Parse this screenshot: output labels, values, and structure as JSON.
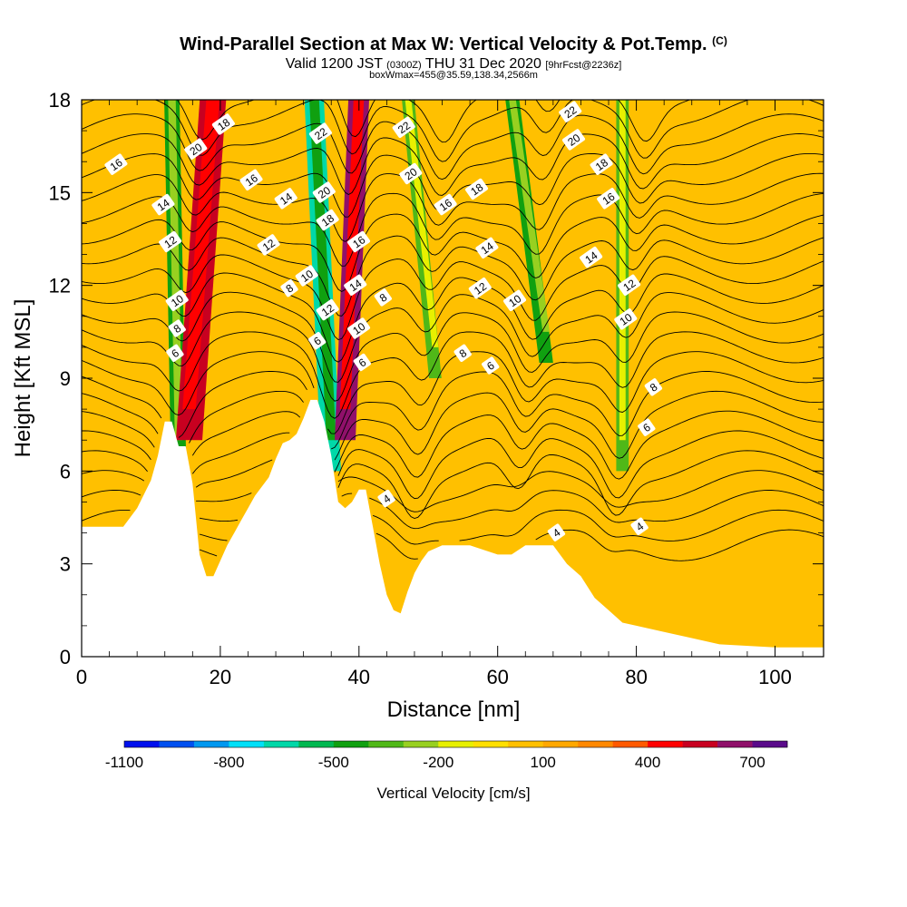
{
  "header": {
    "title": "Wind-Parallel Section at Max W: Vertical Velocity & Pot.Temp.",
    "title_mark": "(C)",
    "valid_label": "Valid 1200 JST",
    "valid_utc": "(0300Z)",
    "valid_date": "THU 31 Dec 2020",
    "forecast_info": "[9hrFcst@2236z]",
    "box_info": "boxWmax=455@35.59,138.34,2566m"
  },
  "chart_data": {
    "type": "heatmap",
    "title": "Wind-Parallel Section at Max W: Vertical Velocity & Pot.Temp.",
    "xlabel": "Distance [nm]",
    "ylabel": "Height [Kft MSL]",
    "xlim": [
      0,
      107
    ],
    "ylim": [
      0,
      18
    ],
    "x_ticks": [
      0,
      20,
      40,
      60,
      80,
      100
    ],
    "y_ticks": [
      0,
      3,
      6,
      9,
      12,
      15,
      18
    ],
    "colorbar": {
      "label": "Vertical Velocity [cm/s]",
      "tick_labels": [
        "-1100",
        "-800",
        "-500",
        "-200",
        "100",
        "400",
        "700"
      ],
      "tick_values": [
        -1100,
        -800,
        -500,
        -200,
        100,
        400,
        700
      ],
      "min": -1100,
      "max": 800,
      "colors": [
        "#0010ee",
        "#0050f0",
        "#0098f0",
        "#00e0f8",
        "#00d8a8",
        "#00b850",
        "#10a010",
        "#50b818",
        "#98d020",
        "#e8f000",
        "#ffe000",
        "#ffc000",
        "#ffa800",
        "#ff8800",
        "#ff5a00",
        "#ff0000",
        "#c80020",
        "#90106a",
        "#5a0a8a"
      ]
    },
    "terrain_kft": [
      [
        0,
        4.2
      ],
      [
        2,
        4.2
      ],
      [
        4,
        4.2
      ],
      [
        6,
        4.2
      ],
      [
        8,
        4.8
      ],
      [
        10,
        5.7
      ],
      [
        11,
        6.5
      ],
      [
        12,
        7.6
      ],
      [
        13,
        7.6
      ],
      [
        14,
        6.8
      ],
      [
        15,
        6.8
      ],
      [
        16,
        5.6
      ],
      [
        17,
        3.3
      ],
      [
        18,
        2.6
      ],
      [
        19,
        2.6
      ],
      [
        20,
        3.1
      ],
      [
        21,
        3.6
      ],
      [
        22,
        4.0
      ],
      [
        23,
        4.4
      ],
      [
        24,
        4.8
      ],
      [
        25,
        5.2
      ],
      [
        26,
        5.5
      ],
      [
        27,
        5.8
      ],
      [
        28,
        6.4
      ],
      [
        29,
        6.9
      ],
      [
        30,
        7.0
      ],
      [
        31,
        7.2
      ],
      [
        32,
        7.7
      ],
      [
        33,
        8.3
      ],
      [
        34,
        8.3
      ],
      [
        35,
        7.6
      ],
      [
        36,
        6.5
      ],
      [
        37,
        5.0
      ],
      [
        38,
        4.8
      ],
      [
        39,
        5.0
      ],
      [
        40,
        5.4
      ],
      [
        41,
        5.4
      ],
      [
        42,
        4.2
      ],
      [
        43,
        3.0
      ],
      [
        44,
        2.0
      ],
      [
        45,
        1.5
      ],
      [
        46,
        1.4
      ],
      [
        47,
        2.1
      ],
      [
        48,
        2.7
      ],
      [
        49,
        3.1
      ],
      [
        50,
        3.4
      ],
      [
        52,
        3.6
      ],
      [
        56,
        3.6
      ],
      [
        60,
        3.3
      ],
      [
        62,
        3.3
      ],
      [
        64,
        3.6
      ],
      [
        68,
        3.6
      ],
      [
        70,
        3.0
      ],
      [
        72,
        2.6
      ],
      [
        74,
        1.9
      ],
      [
        76,
        1.5
      ],
      [
        78,
        1.1
      ],
      [
        80,
        1.0
      ],
      [
        84,
        0.8
      ],
      [
        88,
        0.6
      ],
      [
        92,
        0.4
      ],
      [
        100,
        0.3
      ],
      [
        107,
        0.3
      ]
    ],
    "velocity_bands": [
      {
        "x_top": 13,
        "x_bottom": 14,
        "y_bottom": 6.0,
        "width": 2.2,
        "value": -300
      },
      {
        "x_top": 19,
        "x_bottom": 15.5,
        "y_bottom": 7.0,
        "width": 3.8,
        "value": 400
      },
      {
        "x_top": 33.5,
        "x_bottom": 36,
        "y_bottom": 6.0,
        "width": 2.8,
        "value": -450
      },
      {
        "x_top": 40,
        "x_bottom": 38,
        "y_bottom": 7.0,
        "width": 3.0,
        "value": 450
      },
      {
        "x_top": 47,
        "x_bottom": 51,
        "y_bottom": 9.0,
        "width": 1.8,
        "value": -200
      },
      {
        "x_top": 62,
        "x_bottom": 67,
        "y_bottom": 9.5,
        "width": 2.0,
        "value": -250
      },
      {
        "x_top": 78,
        "x_bottom": 78,
        "y_bottom": 6.0,
        "width": 1.8,
        "value": -150
      }
    ],
    "isentrope_labels": [
      {
        "text": "16",
        "x": 5,
        "y": 15.9
      },
      {
        "text": "14",
        "x": 11.8,
        "y": 14.6
      },
      {
        "text": "12",
        "x": 12.8,
        "y": 13.4
      },
      {
        "text": "10",
        "x": 13.8,
        "y": 11.5
      },
      {
        "text": "8",
        "x": 13.8,
        "y": 10.6
      },
      {
        "text": "6",
        "x": 13.5,
        "y": 9.8
      },
      {
        "text": "20",
        "x": 16.5,
        "y": 16.4
      },
      {
        "text": "18",
        "x": 20.5,
        "y": 17.2
      },
      {
        "text": "16",
        "x": 24.5,
        "y": 15.4
      },
      {
        "text": "14",
        "x": 29.5,
        "y": 14.8
      },
      {
        "text": "12",
        "x": 27,
        "y": 13.3
      },
      {
        "text": "10",
        "x": 32.5,
        "y": 12.3
      },
      {
        "text": "8",
        "x": 30,
        "y": 11.9
      },
      {
        "text": "6",
        "x": 34,
        "y": 10.2
      },
      {
        "text": "22",
        "x": 34.5,
        "y": 16.9
      },
      {
        "text": "20",
        "x": 35,
        "y": 15.0
      },
      {
        "text": "18",
        "x": 35.5,
        "y": 14.1
      },
      {
        "text": "12",
        "x": 35.5,
        "y": 11.2
      },
      {
        "text": "16",
        "x": 40,
        "y": 13.4
      },
      {
        "text": "14",
        "x": 39.5,
        "y": 12.0
      },
      {
        "text": "10",
        "x": 40,
        "y": 10.6
      },
      {
        "text": "6",
        "x": 40.5,
        "y": 9.5
      },
      {
        "text": "8",
        "x": 43.5,
        "y": 11.6
      },
      {
        "text": "22",
        "x": 46.5,
        "y": 17.1
      },
      {
        "text": "20",
        "x": 47.5,
        "y": 15.6
      },
      {
        "text": "16",
        "x": 52.5,
        "y": 14.6
      },
      {
        "text": "18",
        "x": 57,
        "y": 15.1
      },
      {
        "text": "14",
        "x": 58.5,
        "y": 13.2
      },
      {
        "text": "12",
        "x": 57.5,
        "y": 11.9
      },
      {
        "text": "10",
        "x": 62.5,
        "y": 11.5
      },
      {
        "text": "8",
        "x": 55,
        "y": 9.8
      },
      {
        "text": "6",
        "x": 59,
        "y": 9.4
      },
      {
        "text": "4",
        "x": 44,
        "y": 5.1
      },
      {
        "text": "22",
        "x": 70.5,
        "y": 17.6
      },
      {
        "text": "20",
        "x": 71,
        "y": 16.7
      },
      {
        "text": "18",
        "x": 75,
        "y": 15.9
      },
      {
        "text": "16",
        "x": 76,
        "y": 14.8
      },
      {
        "text": "14",
        "x": 73.5,
        "y": 12.9
      },
      {
        "text": "12",
        "x": 79,
        "y": 12.0
      },
      {
        "text": "10",
        "x": 78.5,
        "y": 10.9
      },
      {
        "text": "8",
        "x": 82.5,
        "y": 8.7
      },
      {
        "text": "6",
        "x": 81.5,
        "y": 7.4
      },
      {
        "text": "4",
        "x": 68.5,
        "y": 4.0
      },
      {
        "text": "4",
        "x": 80.5,
        "y": 4.2
      }
    ]
  }
}
